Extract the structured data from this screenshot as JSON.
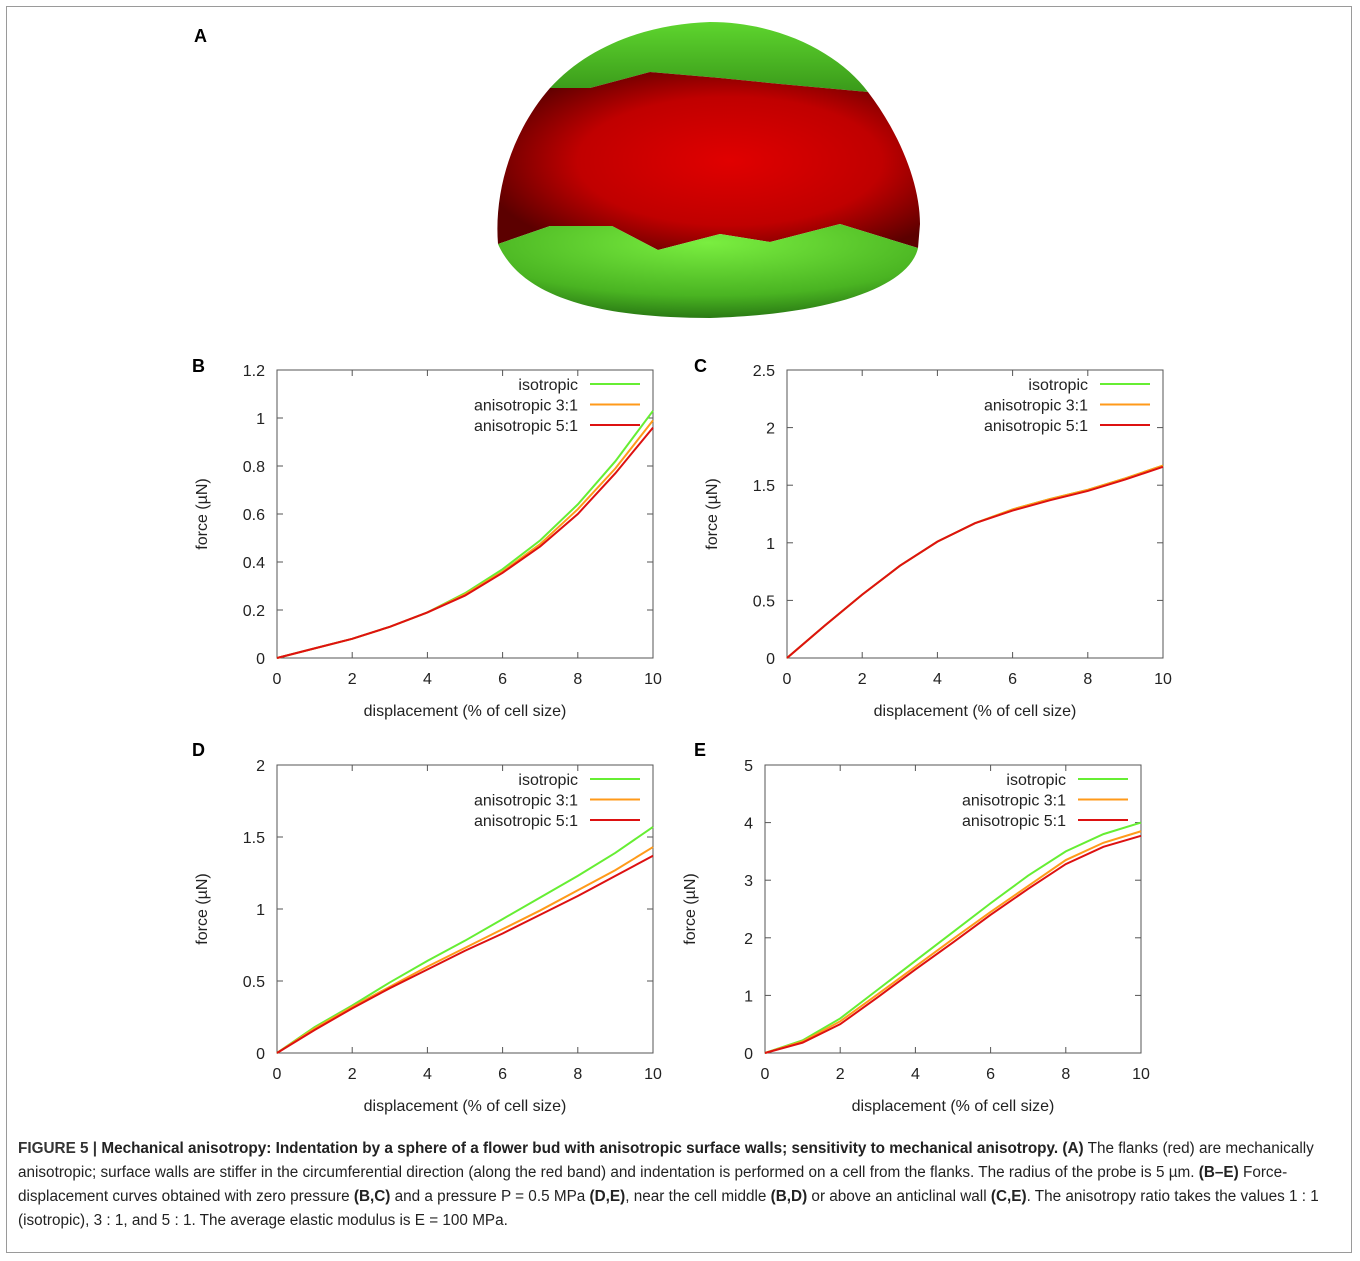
{
  "panels": {
    "a_letter": "A",
    "b_letter": "B",
    "c_letter": "C",
    "d_letter": "D",
    "e_letter": "E"
  },
  "bud_colors": {
    "flank": "#d40000",
    "flank_dark": "#5c0000",
    "top_bottom": "#5ed52e",
    "top_bottom_dark": "#2a7a14"
  },
  "series_colors": {
    "isotropic": "#66ee33",
    "anisotropic_3_1": "#ff9a1a",
    "anisotropic_5_1": "#dd1111"
  },
  "chart_data": [
    {
      "panel": "B",
      "type": "line",
      "xlabel": "displacement (% of cell size)",
      "ylabel": "force (µN)",
      "xlim": [
        0,
        10
      ],
      "ylim": [
        0,
        1.2
      ],
      "xticks": [
        "0",
        "2",
        "4",
        "6",
        "8",
        "10"
      ],
      "yticks": [
        "0",
        "0.2",
        "0.4",
        "0.6",
        "0.8",
        "1",
        "1.2"
      ],
      "legend_position": "top-right",
      "x": [
        0,
        1,
        2,
        3,
        4,
        5,
        6,
        7,
        8,
        9,
        10
      ],
      "series": [
        {
          "name": "isotropic",
          "values": [
            0,
            0.04,
            0.08,
            0.13,
            0.19,
            0.27,
            0.37,
            0.49,
            0.64,
            0.82,
            1.03
          ]
        },
        {
          "name": "anisotropic 3:1",
          "values": [
            0,
            0.04,
            0.08,
            0.13,
            0.19,
            0.265,
            0.36,
            0.475,
            0.62,
            0.79,
            0.99
          ]
        },
        {
          "name": "anisotropic 5:1",
          "values": [
            0,
            0.04,
            0.08,
            0.13,
            0.19,
            0.26,
            0.355,
            0.465,
            0.6,
            0.77,
            0.96
          ]
        }
      ]
    },
    {
      "panel": "C",
      "type": "line",
      "xlabel": "displacement (% of cell size)",
      "ylabel": "force (µN)",
      "xlim": [
        0,
        10
      ],
      "ylim": [
        0,
        2.5
      ],
      "xticks": [
        "0",
        "2",
        "4",
        "6",
        "8",
        "10"
      ],
      "yticks": [
        "0",
        "0.5",
        "1",
        "1.5",
        "2",
        "2.5"
      ],
      "legend_position": "top-right",
      "x": [
        0,
        1,
        2,
        3,
        4,
        5,
        6,
        7,
        8,
        9,
        10
      ],
      "series": [
        {
          "name": "isotropic",
          "values": [
            0,
            0.28,
            0.55,
            0.8,
            1.01,
            1.17,
            1.29,
            1.38,
            1.46,
            1.56,
            1.67
          ]
        },
        {
          "name": "anisotropic 3:1",
          "values": [
            0,
            0.28,
            0.55,
            0.8,
            1.01,
            1.17,
            1.29,
            1.38,
            1.46,
            1.56,
            1.67
          ]
        },
        {
          "name": "anisotropic 5:1",
          "values": [
            0,
            0.28,
            0.55,
            0.8,
            1.01,
            1.17,
            1.28,
            1.37,
            1.45,
            1.55,
            1.66
          ]
        }
      ]
    },
    {
      "panel": "D",
      "type": "line",
      "xlabel": "displacement (% of cell size)",
      "ylabel": "force (µN)",
      "xlim": [
        0,
        10
      ],
      "ylim": [
        0,
        2
      ],
      "xticks": [
        "0",
        "2",
        "4",
        "6",
        "8",
        "10"
      ],
      "yticks": [
        "0",
        "0.5",
        "1",
        "1.5",
        "2"
      ],
      "legend_position": "top-right",
      "x": [
        0,
        1,
        2,
        3,
        4,
        5,
        6,
        7,
        8,
        9,
        10
      ],
      "series": [
        {
          "name": "isotropic",
          "values": [
            0,
            0.18,
            0.33,
            0.49,
            0.64,
            0.78,
            0.93,
            1.08,
            1.23,
            1.39,
            1.57
          ]
        },
        {
          "name": "anisotropic 3:1",
          "values": [
            0,
            0.17,
            0.32,
            0.46,
            0.6,
            0.73,
            0.86,
            0.99,
            1.13,
            1.27,
            1.43
          ]
        },
        {
          "name": "anisotropic 5:1",
          "values": [
            0,
            0.16,
            0.31,
            0.45,
            0.58,
            0.71,
            0.83,
            0.96,
            1.09,
            1.23,
            1.37
          ]
        }
      ]
    },
    {
      "panel": "E",
      "type": "line",
      "xlabel": "displacement (% of cell size)",
      "ylabel": "force (µN)",
      "xlim": [
        0,
        10
      ],
      "ylim": [
        0,
        5
      ],
      "xticks": [
        "0",
        "2",
        "4",
        "6",
        "8",
        "10"
      ],
      "yticks": [
        "0",
        "1",
        "2",
        "3",
        "4",
        "5"
      ],
      "legend_position": "top-right",
      "x": [
        0,
        1,
        2,
        3,
        4,
        5,
        6,
        7,
        8,
        9,
        10
      ],
      "series": [
        {
          "name": "isotropic",
          "values": [
            0,
            0.22,
            0.6,
            1.1,
            1.6,
            2.1,
            2.6,
            3.08,
            3.5,
            3.8,
            4.0
          ]
        },
        {
          "name": "anisotropic 3:1",
          "values": [
            0,
            0.2,
            0.55,
            1.02,
            1.5,
            1.98,
            2.45,
            2.9,
            3.35,
            3.65,
            3.85
          ]
        },
        {
          "name": "anisotropic 5:1",
          "values": [
            0,
            0.18,
            0.5,
            0.97,
            1.45,
            1.92,
            2.4,
            2.85,
            3.28,
            3.58,
            3.77
          ]
        }
      ]
    }
  ],
  "caption": {
    "figure_label": "FIGURE 5 | ",
    "title": "Mechanical anisotropy: Indentation by a sphere of a flower bud with anisotropic surface walls; sensitivity to mechanical anisotropy.",
    "ref_a": "(A)",
    "text_1": " The flanks (red) are mechanically anisotropic; surface walls are stiffer in the circumferential direction (along the red band) and indentation is performed on a cell from the flanks. The radius of the probe is 5 µm. ",
    "ref_be": "(B–E)",
    "text_2": " Force-displacement curves obtained with zero pressure ",
    "ref_bc": "(B,C)",
    "text_3": " and a pressure P = 0.5 MPa ",
    "ref_de": "(D,E)",
    "text_4": ", near the cell middle ",
    "ref_bd": "(B,D)",
    "text_5": " or above an anticlinal wall ",
    "ref_ce": "(C,E)",
    "text_6": ". The anisotropy ratio takes the values 1 : 1 (isotropic), 3 : 1, and 5 : 1. The average elastic modulus is E = 100 MPa."
  }
}
